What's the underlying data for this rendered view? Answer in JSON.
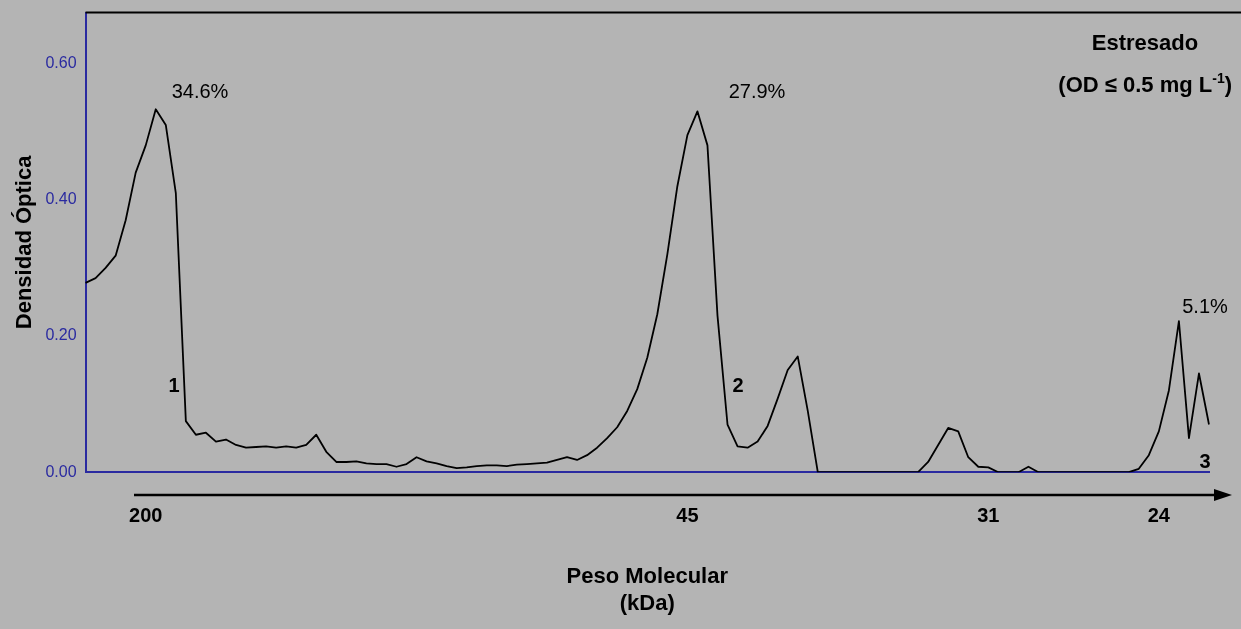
{
  "chart_data": {
    "type": "line",
    "title": "Estresado",
    "subtitle": "(OD ≤ 0.5 mg L$^{-1}$)",
    "xlabel": "Peso Molecular\n(kDa)",
    "ylabel": "Densidad Óptica",
    "categories": [
      null,
      null,
      null,
      null,
      null,
      null,
      "200",
      null,
      null,
      null,
      null,
      null,
      null,
      null,
      null,
      null,
      null,
      null,
      null,
      null,
      null,
      null,
      null,
      null,
      null,
      null,
      null,
      null,
      null,
      null,
      null,
      null,
      null,
      null,
      null,
      null,
      null,
      null,
      null,
      null,
      null,
      null,
      null,
      null,
      null,
      null,
      null,
      null,
      null,
      null,
      null,
      null,
      null,
      null,
      null,
      null,
      null,
      null,
      null,
      null,
      "45",
      null,
      null,
      null,
      null,
      null,
      null,
      null,
      null,
      null,
      null,
      null,
      null,
      null,
      null,
      null,
      null,
      null,
      null,
      null,
      null,
      null,
      null,
      null,
      null,
      null,
      null,
      null,
      null,
      null,
      "31",
      null,
      null,
      null,
      null,
      null,
      null,
      null,
      null,
      null,
      null,
      null,
      null,
      null,
      null,
      null,
      null,
      "24",
      null,
      null,
      null,
      null,
      null
    ],
    "values": [
      0.278,
      0.285,
      0.3,
      0.318,
      0.37,
      0.44,
      0.48,
      0.533,
      0.51,
      0.41,
      0.075,
      0.055,
      0.058,
      0.045,
      0.048,
      0.04,
      0.036,
      0.037,
      0.038,
      0.036,
      0.038,
      0.036,
      0.04,
      0.055,
      0.03,
      0.015,
      0.015,
      0.016,
      0.013,
      0.012,
      0.012,
      0.008,
      0.012,
      0.022,
      0.016,
      0.013,
      0.009,
      0.006,
      0.007,
      0.009,
      0.01,
      0.01,
      0.009,
      0.011,
      0.012,
      0.013,
      0.014,
      0.018,
      0.022,
      0.018,
      0.025,
      0.036,
      0.05,
      0.066,
      0.09,
      0.122,
      0.168,
      0.232,
      0.32,
      0.42,
      0.495,
      0.53,
      0.48,
      0.23,
      0.07,
      0.038,
      0.036,
      0.045,
      0.068,
      0.108,
      0.15,
      0.17,
      0.09,
      0,
      0,
      0,
      0,
      0,
      0,
      0,
      0,
      0,
      0,
      0,
      0.015,
      0.04,
      0.065,
      0.06,
      0.022,
      0.008,
      0.007,
      0,
      0,
      0,
      0.008,
      0,
      0,
      0,
      0,
      0,
      0,
      0,
      0,
      0,
      0,
      0.005,
      0.025,
      0.06,
      0.12,
      0.222,
      0.05,
      0.145,
      0.07
    ],
    "color": "#000000",
    "marker": "none",
    "ylim": [
      0,
      0.675
    ],
    "yticks": [
      {
        "value": 0,
        "label": "0.00"
      },
      {
        "value": 0.2,
        "label": "0.20"
      },
      {
        "value": 0.4,
        "label": "0.40"
      },
      {
        "value": 0.6,
        "label": "0.60"
      }
    ],
    "annotations": [
      "34.6%",
      "27.9%",
      "5.1%",
      "1",
      "2",
      "3"
    ]
  }
}
